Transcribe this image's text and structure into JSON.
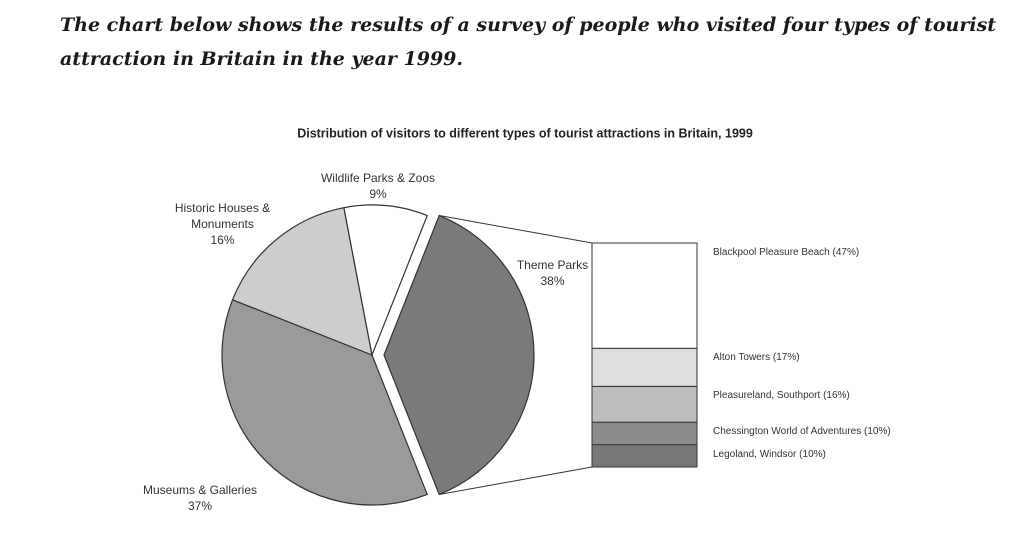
{
  "header": {
    "title": "The chart below shows the results of a survey of people who visited four types of tourist attraction in Britain in the year 1999."
  },
  "chart_data": {
    "type": "pie",
    "title": "Distribution of visitors to different types of tourist attractions in Britain, 1999",
    "categories": [
      "Theme Parks",
      "Museums & Galleries",
      "Historic Houses & Monuments",
      "Wildlife Parks & Zoos"
    ],
    "values": [
      38,
      37,
      16,
      9
    ],
    "value_labels": [
      "38%",
      "37%",
      "16%",
      "9%"
    ],
    "colors": [
      "#7a7a7a",
      "#9a9a9a",
      "#cdcdcd",
      "#ffffff"
    ],
    "breakdown": {
      "type": "stacked-bar",
      "categories": [
        "Legoland, Windsor",
        "Chessington World of Adventures",
        "Pleasureland, Southport",
        "Alton Towers",
        "Blackpool Pleasure Beach"
      ],
      "values": [
        10,
        10,
        16,
        17,
        47
      ],
      "value_labels": [
        "(10%)",
        "(10%)",
        "(16%)",
        "(17%)",
        "(47%)"
      ],
      "colors": [
        "#787878",
        "#8c8c8c",
        "#bdbdbd",
        "#dedede",
        "#ffffff"
      ]
    }
  }
}
